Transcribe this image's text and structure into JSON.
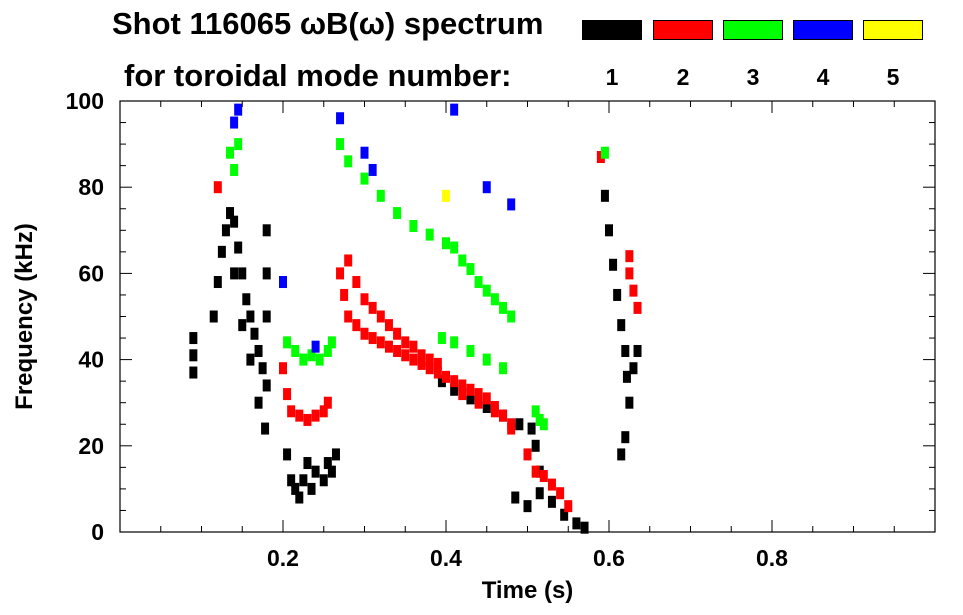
{
  "chart_data": {
    "type": "heatmap",
    "title_line1": "Shot 116065 ωB(ω) spectrum",
    "title_line2": "for toroidal mode number:",
    "xlabel": "Time (s)",
    "ylabel": "Frequency (kHz)",
    "xlim": [
      0.0,
      1.0
    ],
    "ylim": [
      0,
      100
    ],
    "x_ticks": [
      0.2,
      0.4,
      0.6,
      0.8
    ],
    "x_tick_labels": [
      "0.2",
      "0.4",
      "0.6",
      "0.8"
    ],
    "y_ticks": [
      0,
      20,
      40,
      60,
      80,
      100
    ],
    "y_tick_labels": [
      "0",
      "20",
      "40",
      "60",
      "80",
      "100"
    ],
    "legend": [
      {
        "mode": "1",
        "color": "#000000"
      },
      {
        "mode": "2",
        "color": "#ff0000"
      },
      {
        "mode": "3",
        "color": "#00ff00"
      },
      {
        "mode": "4",
        "color": "#0000ff"
      },
      {
        "mode": "5",
        "color": "#ffff00"
      }
    ],
    "series": [
      {
        "name": "n=1",
        "color": "#000000",
        "points": [
          [
            0.09,
            37
          ],
          [
            0.09,
            41
          ],
          [
            0.09,
            45
          ],
          [
            0.115,
            50
          ],
          [
            0.12,
            58
          ],
          [
            0.125,
            65
          ],
          [
            0.13,
            70
          ],
          [
            0.135,
            74
          ],
          [
            0.14,
            72
          ],
          [
            0.145,
            66
          ],
          [
            0.15,
            60
          ],
          [
            0.155,
            54
          ],
          [
            0.16,
            50
          ],
          [
            0.165,
            46
          ],
          [
            0.17,
            42
          ],
          [
            0.175,
            38
          ],
          [
            0.18,
            34
          ],
          [
            0.14,
            60
          ],
          [
            0.15,
            48
          ],
          [
            0.16,
            40
          ],
          [
            0.17,
            30
          ],
          [
            0.178,
            24
          ],
          [
            0.18,
            70
          ],
          [
            0.18,
            60
          ],
          [
            0.18,
            50
          ],
          [
            0.205,
            18
          ],
          [
            0.21,
            12
          ],
          [
            0.215,
            10
          ],
          [
            0.22,
            8
          ],
          [
            0.225,
            12
          ],
          [
            0.23,
            16
          ],
          [
            0.235,
            10
          ],
          [
            0.24,
            14
          ],
          [
            0.25,
            12
          ],
          [
            0.255,
            16
          ],
          [
            0.26,
            14
          ],
          [
            0.265,
            18
          ],
          [
            0.395,
            35
          ],
          [
            0.41,
            33
          ],
          [
            0.43,
            31
          ],
          [
            0.45,
            29
          ],
          [
            0.47,
            27
          ],
          [
            0.49,
            25
          ],
          [
            0.505,
            24
          ],
          [
            0.51,
            20
          ],
          [
            0.515,
            14
          ],
          [
            0.485,
            8
          ],
          [
            0.5,
            6
          ],
          [
            0.515,
            9
          ],
          [
            0.53,
            7
          ],
          [
            0.545,
            4
          ],
          [
            0.56,
            2
          ],
          [
            0.57,
            1
          ],
          [
            0.595,
            78
          ],
          [
            0.6,
            70
          ],
          [
            0.605,
            62
          ],
          [
            0.61,
            55
          ],
          [
            0.615,
            48
          ],
          [
            0.62,
            42
          ],
          [
            0.622,
            36
          ],
          [
            0.625,
            30
          ],
          [
            0.62,
            22
          ],
          [
            0.615,
            18
          ],
          [
            0.63,
            38
          ],
          [
            0.635,
            42
          ]
        ]
      },
      {
        "name": "n=2",
        "color": "#ff0000",
        "points": [
          [
            0.12,
            80
          ],
          [
            0.2,
            38
          ],
          [
            0.205,
            32
          ],
          [
            0.21,
            28
          ],
          [
            0.22,
            27
          ],
          [
            0.23,
            26
          ],
          [
            0.24,
            27
          ],
          [
            0.25,
            28
          ],
          [
            0.255,
            30
          ],
          [
            0.27,
            60
          ],
          [
            0.275,
            55
          ],
          [
            0.28,
            50
          ],
          [
            0.29,
            48
          ],
          [
            0.3,
            46
          ],
          [
            0.31,
            45
          ],
          [
            0.32,
            44
          ],
          [
            0.33,
            43
          ],
          [
            0.34,
            42
          ],
          [
            0.35,
            41
          ],
          [
            0.36,
            40
          ],
          [
            0.37,
            39
          ],
          [
            0.38,
            38
          ],
          [
            0.39,
            37
          ],
          [
            0.4,
            36
          ],
          [
            0.41,
            35
          ],
          [
            0.42,
            34
          ],
          [
            0.43,
            33
          ],
          [
            0.44,
            32
          ],
          [
            0.45,
            31
          ],
          [
            0.46,
            29
          ],
          [
            0.47,
            27
          ],
          [
            0.48,
            25
          ],
          [
            0.28,
            63
          ],
          [
            0.29,
            58
          ],
          [
            0.3,
            54
          ],
          [
            0.31,
            52
          ],
          [
            0.32,
            50
          ],
          [
            0.33,
            48
          ],
          [
            0.34,
            46
          ],
          [
            0.35,
            44
          ],
          [
            0.36,
            43
          ],
          [
            0.37,
            41
          ],
          [
            0.38,
            40
          ],
          [
            0.39,
            39
          ],
          [
            0.42,
            32
          ],
          [
            0.44,
            30
          ],
          [
            0.46,
            28
          ],
          [
            0.48,
            24
          ],
          [
            0.5,
            18
          ],
          [
            0.51,
            14
          ],
          [
            0.52,
            13
          ],
          [
            0.53,
            11
          ],
          [
            0.54,
            9
          ],
          [
            0.55,
            6
          ],
          [
            0.59,
            87
          ],
          [
            0.625,
            60
          ],
          [
            0.63,
            56
          ],
          [
            0.635,
            52
          ],
          [
            0.625,
            64
          ]
        ]
      },
      {
        "name": "n=3",
        "color": "#00ff00",
        "points": [
          [
            0.135,
            88
          ],
          [
            0.14,
            84
          ],
          [
            0.145,
            90
          ],
          [
            0.205,
            44
          ],
          [
            0.215,
            42
          ],
          [
            0.225,
            40
          ],
          [
            0.235,
            41
          ],
          [
            0.245,
            40
          ],
          [
            0.255,
            42
          ],
          [
            0.26,
            44
          ],
          [
            0.27,
            90
          ],
          [
            0.28,
            86
          ],
          [
            0.3,
            82
          ],
          [
            0.32,
            78
          ],
          [
            0.34,
            74
          ],
          [
            0.36,
            71
          ],
          [
            0.38,
            69
          ],
          [
            0.4,
            67
          ],
          [
            0.41,
            66
          ],
          [
            0.42,
            63
          ],
          [
            0.43,
            61
          ],
          [
            0.44,
            58
          ],
          [
            0.45,
            56
          ],
          [
            0.46,
            54
          ],
          [
            0.47,
            52
          ],
          [
            0.48,
            50
          ],
          [
            0.395,
            45
          ],
          [
            0.41,
            44
          ],
          [
            0.43,
            42
          ],
          [
            0.45,
            40
          ],
          [
            0.47,
            38
          ],
          [
            0.51,
            28
          ],
          [
            0.515,
            26
          ],
          [
            0.52,
            25
          ],
          [
            0.595,
            88
          ]
        ]
      },
      {
        "name": "n=4",
        "color": "#0000ff",
        "points": [
          [
            0.145,
            98
          ],
          [
            0.14,
            95
          ],
          [
            0.2,
            58
          ],
          [
            0.24,
            43
          ],
          [
            0.27,
            96
          ],
          [
            0.3,
            88
          ],
          [
            0.31,
            84
          ],
          [
            0.41,
            98
          ],
          [
            0.45,
            80
          ],
          [
            0.48,
            76
          ]
        ]
      },
      {
        "name": "n=5",
        "color": "#ffff00",
        "points": [
          [
            0.4,
            78
          ]
        ]
      }
    ]
  }
}
